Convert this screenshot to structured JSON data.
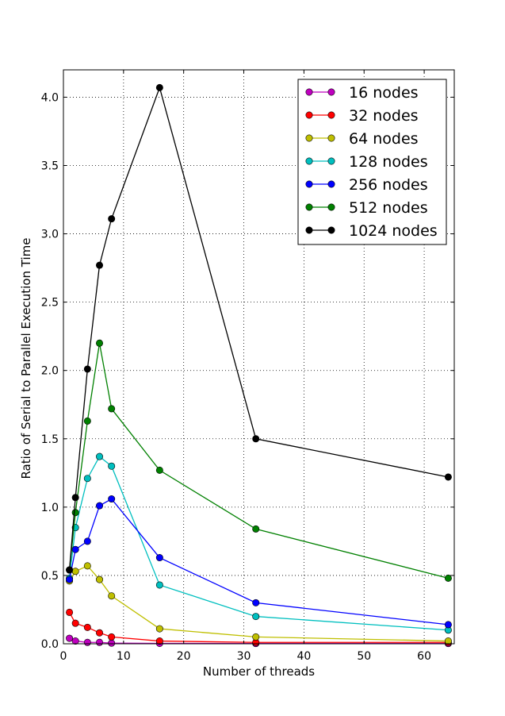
{
  "chart_data": {
    "type": "line",
    "xlabel": "Number of threads",
    "ylabel": "Ratio of Serial to Parallel Execution Time",
    "xlim": [
      0,
      65
    ],
    "ylim": [
      0,
      4.2
    ],
    "x_ticks": [
      0,
      10,
      20,
      30,
      40,
      50,
      60
    ],
    "y_ticks": [
      0.0,
      0.5,
      1.0,
      1.5,
      2.0,
      2.5,
      3.0,
      3.5,
      4.0
    ],
    "grid": true,
    "legend_position": "top-right",
    "x": [
      1,
      2,
      4,
      6,
      8,
      16,
      32,
      64
    ],
    "series": [
      {
        "name": "16 nodes",
        "color": "#bf00bf",
        "values": [
          0.04,
          0.02,
          0.01,
          0.01,
          0.005,
          0.003,
          0.002,
          0.002
        ]
      },
      {
        "name": "32 nodes",
        "color": "#ff0000",
        "values": [
          0.23,
          0.15,
          0.12,
          0.08,
          0.05,
          0.02,
          0.01,
          0.01
        ]
      },
      {
        "name": "64 nodes",
        "color": "#bfbf00",
        "values": [
          0.46,
          0.53,
          0.57,
          0.47,
          0.35,
          0.11,
          0.05,
          0.02
        ]
      },
      {
        "name": "128 nodes",
        "color": "#00bfbf",
        "values": [
          0.48,
          0.85,
          1.21,
          1.37,
          1.3,
          0.43,
          0.2,
          0.1
        ]
      },
      {
        "name": "256 nodes",
        "color": "#0000ff",
        "values": [
          0.47,
          0.69,
          0.75,
          1.01,
          1.06,
          0.63,
          0.3,
          0.14
        ]
      },
      {
        "name": "512 nodes",
        "color": "#008000",
        "values": [
          0.54,
          0.96,
          1.63,
          2.2,
          1.72,
          1.27,
          0.84,
          0.48
        ]
      },
      {
        "name": "1024 nodes",
        "color": "#000000",
        "values": [
          0.54,
          1.07,
          2.01,
          2.77,
          3.11,
          4.07,
          1.5,
          1.22
        ]
      }
    ]
  }
}
